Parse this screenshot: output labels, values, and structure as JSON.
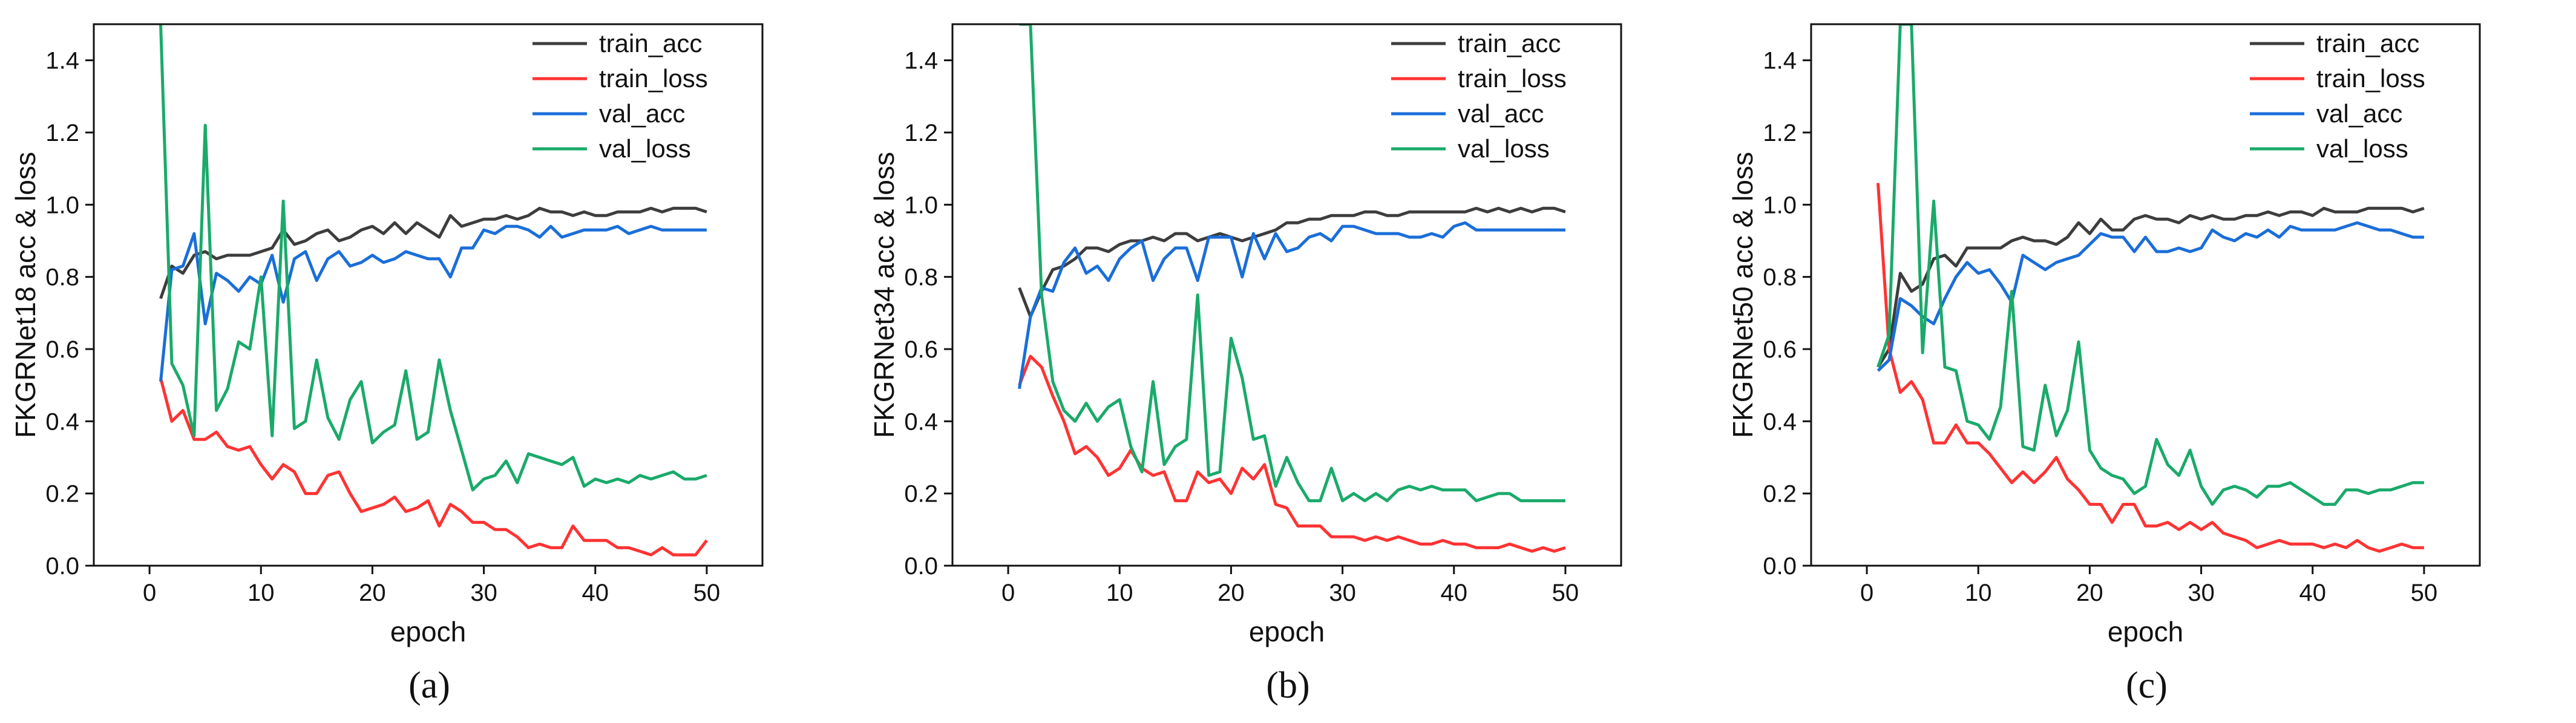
{
  "chart_data": [
    {
      "type": "line",
      "caption": "(a)",
      "title": "",
      "xlabel": "epoch",
      "ylabel": "FKGRNet18 acc & loss",
      "xlim": [
        -5,
        55
      ],
      "ylim": [
        0,
        1.5
      ],
      "xticks": [
        0,
        10,
        20,
        30,
        40,
        50
      ],
      "yticks": [
        "0.0",
        "0.2",
        "0.4",
        "0.6",
        "0.8",
        "1.0",
        "1.2",
        "1.4"
      ],
      "legend_position": "top-right",
      "series": [
        {
          "name": "train_acc",
          "color": "#3d3d3d",
          "values": [
            0.74,
            0.83,
            0.81,
            0.86,
            0.87,
            0.85,
            0.86,
            0.86,
            0.86,
            0.87,
            0.88,
            0.93,
            0.89,
            0.9,
            0.92,
            0.93,
            0.9,
            0.91,
            0.93,
            0.94,
            0.92,
            0.95,
            0.92,
            0.95,
            0.93,
            0.91,
            0.97,
            0.94,
            0.95,
            0.96,
            0.96,
            0.97,
            0.96,
            0.97,
            0.99,
            0.98,
            0.98,
            0.97,
            0.98,
            0.97,
            0.97,
            0.98,
            0.98,
            0.98,
            0.99,
            0.98,
            0.99,
            0.99,
            0.99,
            0.98
          ]
        },
        {
          "name": "train_loss",
          "color": "#ff3333",
          "values": [
            0.52,
            0.4,
            0.43,
            0.35,
            0.35,
            0.37,
            0.33,
            0.32,
            0.33,
            0.28,
            0.24,
            0.28,
            0.26,
            0.2,
            0.2,
            0.25,
            0.26,
            0.2,
            0.15,
            0.16,
            0.17,
            0.19,
            0.15,
            0.16,
            0.18,
            0.11,
            0.17,
            0.15,
            0.12,
            0.12,
            0.1,
            0.1,
            0.08,
            0.05,
            0.06,
            0.05,
            0.05,
            0.11,
            0.07,
            0.07,
            0.07,
            0.05,
            0.05,
            0.04,
            0.03,
            0.05,
            0.03,
            0.03,
            0.03,
            0.07
          ]
        },
        {
          "name": "val_acc",
          "color": "#1a6ed8",
          "values": [
            0.51,
            0.82,
            0.83,
            0.92,
            0.67,
            0.81,
            0.79,
            0.76,
            0.8,
            0.78,
            0.86,
            0.73,
            0.85,
            0.87,
            0.79,
            0.85,
            0.87,
            0.83,
            0.84,
            0.86,
            0.84,
            0.85,
            0.87,
            0.86,
            0.85,
            0.85,
            0.8,
            0.88,
            0.88,
            0.93,
            0.92,
            0.94,
            0.94,
            0.93,
            0.91,
            0.94,
            0.91,
            0.92,
            0.93,
            0.93,
            0.93,
            0.94,
            0.92,
            0.93,
            0.94,
            0.93,
            0.93,
            0.93,
            0.93,
            0.93
          ]
        },
        {
          "name": "val_loss",
          "color": "#1aaa6a",
          "values": [
            1.5,
            0.56,
            0.5,
            0.36,
            1.22,
            0.43,
            0.49,
            0.62,
            0.6,
            0.8,
            0.36,
            1.01,
            0.38,
            0.4,
            0.57,
            0.41,
            0.35,
            0.46,
            0.51,
            0.34,
            0.37,
            0.39,
            0.54,
            0.35,
            0.37,
            0.57,
            0.43,
            0.32,
            0.21,
            0.24,
            0.25,
            0.29,
            0.23,
            0.31,
            0.3,
            0.29,
            0.28,
            0.3,
            0.22,
            0.24,
            0.23,
            0.24,
            0.23,
            0.25,
            0.24,
            0.25,
            0.26,
            0.24,
            0.24,
            0.25
          ]
        }
      ]
    },
    {
      "type": "line",
      "caption": "(b)",
      "title": "",
      "xlabel": "epoch",
      "ylabel": "FKGRNet34 acc & loss",
      "xlim": [
        -5,
        55
      ],
      "ylim": [
        0,
        1.5
      ],
      "xticks": [
        0,
        10,
        20,
        30,
        40,
        50
      ],
      "yticks": [
        "0.0",
        "0.2",
        "0.4",
        "0.6",
        "0.8",
        "1.0",
        "1.2",
        "1.4"
      ],
      "legend_position": "top-right",
      "series": [
        {
          "name": "train_acc",
          "color": "#3d3d3d",
          "values": [
            0.77,
            0.69,
            0.76,
            0.82,
            0.83,
            0.85,
            0.88,
            0.88,
            0.87,
            0.89,
            0.9,
            0.9,
            0.91,
            0.9,
            0.92,
            0.92,
            0.9,
            0.91,
            0.92,
            0.91,
            0.9,
            0.91,
            0.92,
            0.93,
            0.95,
            0.95,
            0.96,
            0.96,
            0.97,
            0.97,
            0.97,
            0.98,
            0.98,
            0.97,
            0.97,
            0.98,
            0.98,
            0.98,
            0.98,
            0.98,
            0.98,
            0.99,
            0.98,
            0.99,
            0.98,
            0.99,
            0.98,
            0.99,
            0.99,
            0.98
          ]
        },
        {
          "name": "train_loss",
          "color": "#ff3333",
          "values": [
            0.5,
            0.58,
            0.55,
            0.47,
            0.4,
            0.31,
            0.33,
            0.3,
            0.25,
            0.27,
            0.32,
            0.27,
            0.25,
            0.26,
            0.18,
            0.18,
            0.26,
            0.23,
            0.24,
            0.2,
            0.27,
            0.24,
            0.28,
            0.17,
            0.16,
            0.11,
            0.11,
            0.11,
            0.08,
            0.08,
            0.08,
            0.07,
            0.08,
            0.07,
            0.08,
            0.07,
            0.06,
            0.06,
            0.07,
            0.06,
            0.06,
            0.05,
            0.05,
            0.05,
            0.06,
            0.05,
            0.04,
            0.05,
            0.04,
            0.05
          ]
        },
        {
          "name": "val_acc",
          "color": "#1a6ed8",
          "values": [
            0.49,
            0.69,
            0.77,
            0.76,
            0.84,
            0.88,
            0.81,
            0.83,
            0.79,
            0.85,
            0.88,
            0.9,
            0.79,
            0.85,
            0.88,
            0.88,
            0.79,
            0.91,
            0.91,
            0.91,
            0.8,
            0.92,
            0.85,
            0.92,
            0.87,
            0.88,
            0.91,
            0.92,
            0.9,
            0.94,
            0.94,
            0.93,
            0.92,
            0.92,
            0.92,
            0.91,
            0.91,
            0.92,
            0.91,
            0.94,
            0.95,
            0.93,
            0.93,
            0.93,
            0.93,
            0.93,
            0.93,
            0.93,
            0.93,
            0.93
          ]
        },
        {
          "name": "val_loss",
          "color": "#1aaa6a",
          "values": [
            1.5,
            1.5,
            0.75,
            0.51,
            0.43,
            0.4,
            0.45,
            0.4,
            0.44,
            0.46,
            0.33,
            0.26,
            0.51,
            0.28,
            0.33,
            0.35,
            0.75,
            0.25,
            0.26,
            0.63,
            0.52,
            0.35,
            0.36,
            0.22,
            0.3,
            0.23,
            0.18,
            0.18,
            0.27,
            0.18,
            0.2,
            0.18,
            0.2,
            0.18,
            0.21,
            0.22,
            0.21,
            0.22,
            0.21,
            0.21,
            0.21,
            0.18,
            0.19,
            0.2,
            0.2,
            0.18,
            0.18,
            0.18,
            0.18,
            0.18
          ]
        }
      ]
    },
    {
      "type": "line",
      "caption": "(c)",
      "title": "",
      "xlabel": "epoch",
      "ylabel": "FKGRNet50 acc & loss",
      "xlim": [
        -5,
        55
      ],
      "ylim": [
        0,
        1.5
      ],
      "xticks": [
        0,
        10,
        20,
        30,
        40,
        50
      ],
      "yticks": [
        "0.0",
        "0.2",
        "0.4",
        "0.6",
        "0.8",
        "1.0",
        "1.2",
        "1.4"
      ],
      "legend_position": "top-right",
      "series": [
        {
          "name": "train_acc",
          "color": "#3d3d3d",
          "values": [
            0.55,
            0.6,
            0.81,
            0.76,
            0.78,
            0.85,
            0.86,
            0.83,
            0.88,
            0.88,
            0.88,
            0.88,
            0.9,
            0.91,
            0.9,
            0.9,
            0.89,
            0.91,
            0.95,
            0.92,
            0.96,
            0.93,
            0.93,
            0.96,
            0.97,
            0.96,
            0.96,
            0.95,
            0.97,
            0.96,
            0.97,
            0.96,
            0.96,
            0.97,
            0.97,
            0.98,
            0.97,
            0.98,
            0.98,
            0.97,
            0.99,
            0.98,
            0.98,
            0.98,
            0.99,
            0.99,
            0.99,
            0.99,
            0.98,
            0.99
          ]
        },
        {
          "name": "train_loss",
          "color": "#ff3333",
          "values": [
            1.06,
            0.6,
            0.48,
            0.51,
            0.46,
            0.34,
            0.34,
            0.39,
            0.34,
            0.34,
            0.31,
            0.27,
            0.23,
            0.26,
            0.23,
            0.26,
            0.3,
            0.24,
            0.21,
            0.17,
            0.17,
            0.12,
            0.17,
            0.17,
            0.11,
            0.11,
            0.12,
            0.1,
            0.12,
            0.1,
            0.12,
            0.09,
            0.08,
            0.07,
            0.05,
            0.06,
            0.07,
            0.06,
            0.06,
            0.06,
            0.05,
            0.06,
            0.05,
            0.07,
            0.05,
            0.04,
            0.05,
            0.06,
            0.05,
            0.05
          ]
        },
        {
          "name": "val_acc",
          "color": "#1a6ed8",
          "values": [
            0.54,
            0.57,
            0.74,
            0.72,
            0.69,
            0.67,
            0.74,
            0.8,
            0.84,
            0.81,
            0.82,
            0.78,
            0.73,
            0.86,
            0.84,
            0.82,
            0.84,
            0.85,
            0.86,
            0.89,
            0.92,
            0.91,
            0.91,
            0.87,
            0.91,
            0.87,
            0.87,
            0.88,
            0.87,
            0.88,
            0.93,
            0.91,
            0.9,
            0.92,
            0.91,
            0.93,
            0.91,
            0.94,
            0.93,
            0.93,
            0.93,
            0.93,
            0.94,
            0.95,
            0.94,
            0.93,
            0.93,
            0.92,
            0.91,
            0.91
          ]
        },
        {
          "name": "val_loss",
          "color": "#1aaa6a",
          "values": [
            0.55,
            0.64,
            1.5,
            1.5,
            0.59,
            1.01,
            0.55,
            0.54,
            0.4,
            0.39,
            0.35,
            0.44,
            0.76,
            0.33,
            0.32,
            0.5,
            0.36,
            0.43,
            0.62,
            0.32,
            0.27,
            0.25,
            0.24,
            0.2,
            0.22,
            0.35,
            0.28,
            0.25,
            0.32,
            0.22,
            0.17,
            0.21,
            0.22,
            0.21,
            0.19,
            0.22,
            0.22,
            0.23,
            0.21,
            0.19,
            0.17,
            0.17,
            0.21,
            0.21,
            0.2,
            0.21,
            0.21,
            0.22,
            0.23,
            0.23
          ]
        }
      ]
    }
  ]
}
